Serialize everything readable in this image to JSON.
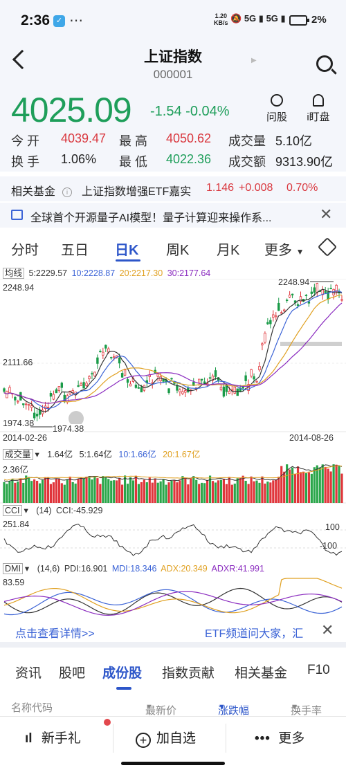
{
  "status_bar": {
    "time": "2:36",
    "net_speed": "1.20",
    "net_unit": "KB/s",
    "signal_a": "5G",
    "signal_b": "5G",
    "battery": "2%"
  },
  "header": {
    "title": "上证指数",
    "code": "000001"
  },
  "quote": {
    "price": "4025.09",
    "change": "-1.54",
    "change_pct": "-0.04%",
    "ask_label": "问股",
    "watch_label": "i盯盘",
    "rows": [
      [
        {
          "label": "今 开",
          "value": "4039.47",
          "color": "#d9373e"
        },
        {
          "label": "最 高",
          "value": "4050.62",
          "color": "#d9373e"
        },
        {
          "label": "成交量",
          "value": "5.10亿",
          "color": "#222222"
        }
      ],
      [
        {
          "label": "换 手",
          "value": "1.06%",
          "color": "#222222"
        },
        {
          "label": "最 低",
          "value": "4022.36",
          "color": "#1e9e5a"
        },
        {
          "label": "成交额",
          "value": "9313.90亿",
          "color": "#222222"
        }
      ]
    ]
  },
  "related_fund": {
    "label": "相关基金",
    "info_icon": "info-icon",
    "name": "上证指数增强ETF嘉实",
    "price": "1.146",
    "change": "+0.008",
    "change_pct": "0.70%"
  },
  "news": {
    "icon": "message-icon",
    "text": "全球首个开源量子AI模型！量子计算迎来操作系..."
  },
  "period_tabs": [
    "分时",
    "五日",
    "日K",
    "周K",
    "月K",
    "更多"
  ],
  "active_period": 2,
  "ma": {
    "label": "均线",
    "items": [
      {
        "text": "5:2229.57",
        "color": "#333333"
      },
      {
        "text": "10:2228.87",
        "color": "#3b63d6"
      },
      {
        "text": "20:2217.30",
        "color": "#e0a020"
      },
      {
        "text": "30:2177.64",
        "color": "#8a2bbf"
      }
    ]
  },
  "chart_data": [
    {
      "type": "candlestick",
      "title": "日K",
      "y_ticks": [
        "2248.94",
        "2111.66",
        "1974.38"
      ],
      "ylim": [
        1974.38,
        2248.94
      ],
      "x_start": "2014-02-26",
      "x_end": "2014-08-26",
      "annotations": [
        {
          "text": "2248.94",
          "kind": "high"
        },
        {
          "text": "1974.38",
          "kind": "low"
        }
      ],
      "series": [
        {
          "name": "5",
          "latest": 2229.57,
          "color": "#333333"
        },
        {
          "name": "10",
          "latest": 2228.87,
          "color": "#3b63d6"
        },
        {
          "name": "20",
          "latest": 2217.3,
          "color": "#e0a020"
        },
        {
          "name": "30",
          "latest": 2177.64,
          "color": "#8a2bbf"
        }
      ]
    },
    {
      "type": "bar",
      "title": "成交量",
      "ymax_label": "2.36亿",
      "series": [
        {
          "name": "成交量",
          "latest": "1.64亿"
        },
        {
          "name": "5",
          "latest": "1.64亿",
          "color": "#333333"
        },
        {
          "name": "10",
          "latest": "1.66亿",
          "color": "#3b63d6"
        },
        {
          "name": "20",
          "latest": "1.67亿",
          "color": "#e0a020"
        }
      ]
    },
    {
      "type": "line",
      "title": "CCI",
      "params": "(14)",
      "latest": "CCI:-45.929",
      "ymax_label": "251.84",
      "ref_levels": [
        "100",
        "-100"
      ]
    },
    {
      "type": "line",
      "title": "DMI",
      "params": "(14,6)",
      "ymax_label": "83.59",
      "series": [
        {
          "name": "PDI",
          "text": "PDI:16.901",
          "color": "#333333"
        },
        {
          "name": "MDI",
          "text": "MDI:18.346",
          "color": "#3b63d6"
        },
        {
          "name": "ADX",
          "text": "ADX:20.349",
          "color": "#e0a020"
        },
        {
          "name": "ADXR",
          "text": "ADXR:41.991",
          "color": "#8a2bbf"
        }
      ]
    }
  ],
  "detail": {
    "link": "点击查看详情>>",
    "etf_text": "ETF频道问大家，汇"
  },
  "bottom_tabs": [
    "资讯",
    "股吧",
    "成份股",
    "指数贡献",
    "相关基金",
    "F10"
  ],
  "active_bottom_tab": 2,
  "columns": {
    "name": "名称代码",
    "price": "最新价",
    "change": "涨跌幅",
    "turnover": "换手率"
  },
  "bottom_bar": {
    "guide": "新手礼",
    "add": "加自选",
    "more": "更多"
  }
}
